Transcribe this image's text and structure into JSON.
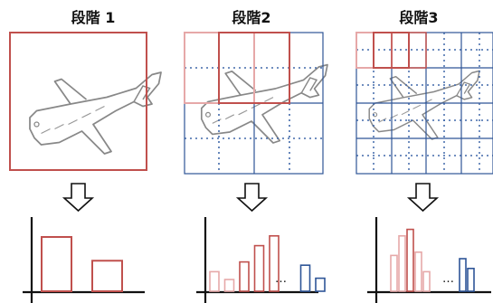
{
  "stages": [
    {
      "title": "段階 1"
    },
    {
      "title": "段階2"
    },
    {
      "title": "段階3"
    }
  ],
  "ellipsis": "…",
  "colors": {
    "red": "#c0504d",
    "pink": "#e6a8a8",
    "blue": "#2e5597",
    "grid_blue": "#4169aa",
    "axis": "#111111",
    "plane": "#888888"
  },
  "icons": {
    "plane": "airplane-sketch",
    "arrow": "down-arrow"
  },
  "chart_data": [
    {
      "type": "bar",
      "values": [
        0.8,
        0.45
      ],
      "series_colors": [
        "red",
        "red"
      ]
    },
    {
      "type": "bar",
      "values": [
        0.3,
        0.18,
        0.45,
        0.7,
        0.85,
        0.4,
        0.2
      ],
      "series_colors": [
        "pink",
        "pink",
        "red",
        "red",
        "red",
        "blue",
        "blue"
      ],
      "gap_after_index": 4
    },
    {
      "type": "bar",
      "values": [
        0.55,
        0.85,
        0.95,
        0.6,
        0.3,
        0.5,
        0.35
      ],
      "series_colors": [
        "pink",
        "pink",
        "red",
        "pink",
        "pink",
        "blue",
        "blue"
      ],
      "gap_after_index": 4
    }
  ]
}
